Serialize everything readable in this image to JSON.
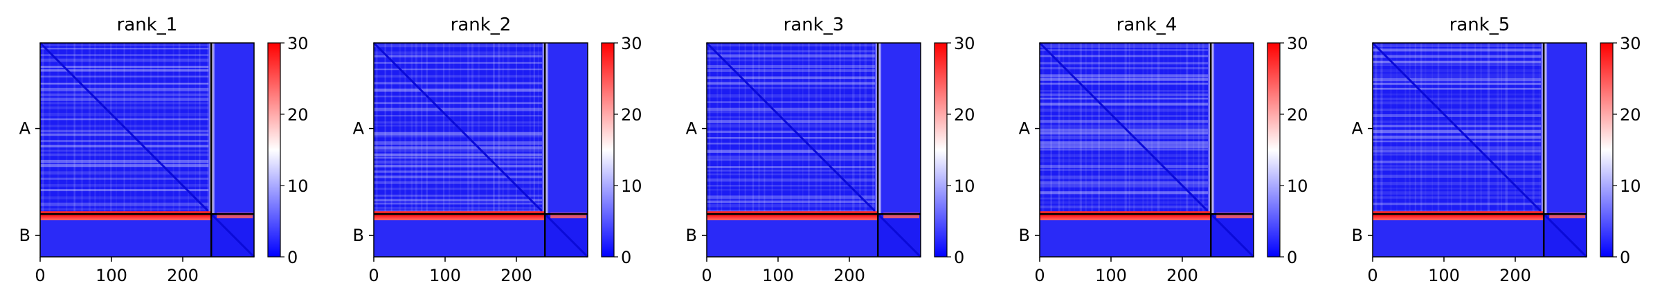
{
  "chart_data": [
    {
      "type": "heatmap",
      "title": "rank_1",
      "xlim": [
        0,
        300
      ],
      "x_ticks": [
        0,
        100,
        200
      ],
      "y_tick_labels": [
        "A",
        "B"
      ],
      "chain_boundary": 240,
      "colorbar": {
        "min": 0,
        "max": 30,
        "ticks": [
          0,
          10,
          20,
          30
        ],
        "colormap": "bwr"
      }
    },
    {
      "type": "heatmap",
      "title": "rank_2",
      "xlim": [
        0,
        300
      ],
      "x_ticks": [
        0,
        100,
        200
      ],
      "y_tick_labels": [
        "A",
        "B"
      ],
      "chain_boundary": 240,
      "colorbar": {
        "min": 0,
        "max": 30,
        "ticks": [
          0,
          10,
          20,
          30
        ],
        "colormap": "bwr"
      }
    },
    {
      "type": "heatmap",
      "title": "rank_3",
      "xlim": [
        0,
        300
      ],
      "x_ticks": [
        0,
        100,
        200
      ],
      "y_tick_labels": [
        "A",
        "B"
      ],
      "chain_boundary": 240,
      "colorbar": {
        "min": 0,
        "max": 30,
        "ticks": [
          0,
          10,
          20,
          30
        ],
        "colormap": "bwr"
      }
    },
    {
      "type": "heatmap",
      "title": "rank_4",
      "xlim": [
        0,
        300
      ],
      "x_ticks": [
        0,
        100,
        200
      ],
      "y_tick_labels": [
        "A",
        "B"
      ],
      "chain_boundary": 240,
      "colorbar": {
        "min": 0,
        "max": 30,
        "ticks": [
          0,
          10,
          20,
          30
        ],
        "colormap": "bwr"
      }
    },
    {
      "type": "heatmap",
      "title": "rank_5",
      "xlim": [
        0,
        300
      ],
      "x_ticks": [
        0,
        100,
        200
      ],
      "y_tick_labels": [
        "A",
        "B"
      ],
      "chain_boundary": 240,
      "colorbar": {
        "min": 0,
        "max": 30,
        "ticks": [
          0,
          10,
          20,
          30
        ],
        "colormap": "bwr"
      }
    }
  ],
  "colors": {
    "low": "#0000ff",
    "mid": "#ffffff",
    "high": "#ff0000",
    "boundary_line": "#000000"
  }
}
